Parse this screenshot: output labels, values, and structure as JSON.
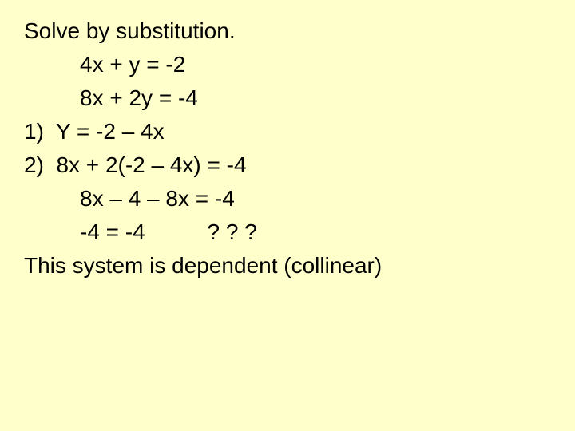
{
  "lines": {
    "l1": "Solve by substitution.",
    "l2": "4x + y = -2",
    "l3": "8x + 2y = -4",
    "l4": "1)  Y = -2 – 4x",
    "l5": "2)  8x + 2(-2 – 4x) = -4",
    "l6": "8x – 4 – 8x = -4",
    "l7": "-4 = -4          ? ? ?",
    "l8": "This system is dependent (collinear)"
  },
  "background_color": "#ffffcc",
  "text_color": "#000000",
  "font_size": 28
}
